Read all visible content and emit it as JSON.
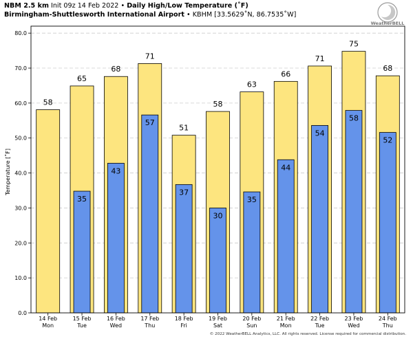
{
  "header": {
    "model": "NBM 2.5 km",
    "init": "Init 09z 14 Feb 2022",
    "sep": "•",
    "product": "Daily High/Low Temperature (˚F)",
    "station": "Birmingham-Shuttlesworth International Airport",
    "station_id": "KBHM [33.5629˚N, 86.7535˚W]"
  },
  "logo_text": "WeatherBELL",
  "footer": "© 2022 WeatherBELL Analytics, LLC. All rights reserved. License required for commercial distribution.",
  "colors": {
    "high": "#fde57f",
    "low": "#6493ea",
    "edge": "#000000",
    "grid": "#cccccc"
  },
  "chart_data": {
    "type": "bar",
    "categories": [
      "14 Feb",
      "15 Feb",
      "16 Feb",
      "17 Feb",
      "18 Feb",
      "19 Feb",
      "20 Feb",
      "21 Feb",
      "22 Feb",
      "23 Feb",
      "24 Feb"
    ],
    "weekdays": [
      "Mon",
      "Tue",
      "Wed",
      "Thu",
      "Fri",
      "Sat",
      "Sun",
      "Mon",
      "Tue",
      "Wed",
      "Thu"
    ],
    "series": [
      {
        "values": [
          58.1,
          64.9,
          67.6,
          71.3,
          50.8,
          57.6,
          63.2,
          66.2,
          70.6,
          74.8,
          67.8
        ],
        "labels": [
          "58",
          "65",
          "68",
          "71",
          "51",
          "58",
          "63",
          "66",
          "71",
          "75",
          "68"
        ]
      },
      {
        "values": [
          null,
          34.8,
          42.8,
          56.6,
          36.7,
          30.0,
          34.6,
          43.8,
          53.6,
          57.9,
          51.6
        ],
        "labels": [
          null,
          "35",
          "43",
          "57",
          "37",
          "30",
          "35",
          "44",
          "54",
          "58",
          "52"
        ]
      }
    ],
    "ylabel": "Temperature [˚F]",
    "ylim": [
      0,
      82
    ],
    "yticks": [
      "0.0",
      "10.0",
      "20.0",
      "30.0",
      "40.0",
      "50.0",
      "60.0",
      "70.0",
      "80.0"
    ],
    "grid": true
  }
}
